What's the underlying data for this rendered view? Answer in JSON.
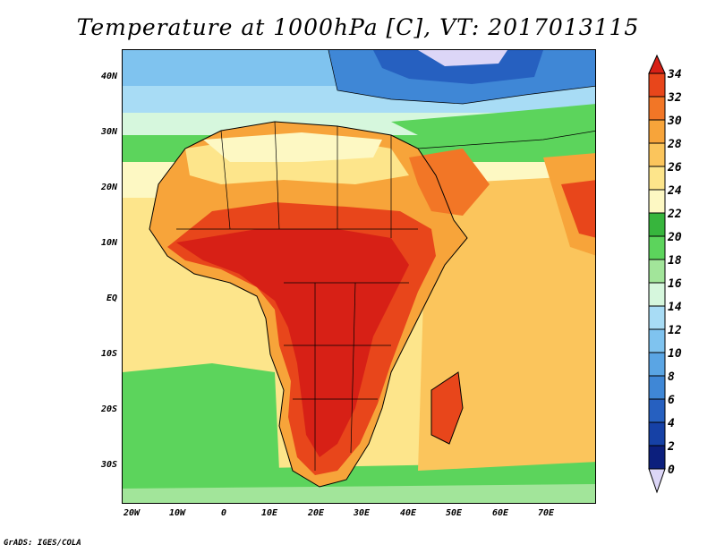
{
  "title": "Temperature at 1000hPa [C], VT: 2017013115",
  "credit": "GrADS: IGES/COLA",
  "lat_labels": [
    "40N",
    "30N",
    "20N",
    "10N",
    "EQ",
    "10S",
    "20S",
    "30S"
  ],
  "lon_labels": [
    "20W",
    "10W",
    "0",
    "10E",
    "20E",
    "30E",
    "40E",
    "50E",
    "60E",
    "70E"
  ],
  "colorbar": {
    "levels": [
      "34",
      "32",
      "30",
      "28",
      "26",
      "24",
      "22",
      "20",
      "18",
      "16",
      "14",
      "12",
      "10",
      "8",
      "6",
      "4",
      "2",
      "0"
    ],
    "colors": [
      "#d72016",
      "#e8461b",
      "#f27626",
      "#f7a43a",
      "#fbc55c",
      "#fde58b",
      "#fdf8c3",
      "#37b53d",
      "#5cd45c",
      "#a2e59a",
      "#d6f7dd",
      "#a8dcf5",
      "#7fc3ef",
      "#5aa5e4",
      "#3f87d6",
      "#2660c0",
      "#1641a6",
      "#0c1f7d",
      "#dcd6f7"
    ]
  }
}
